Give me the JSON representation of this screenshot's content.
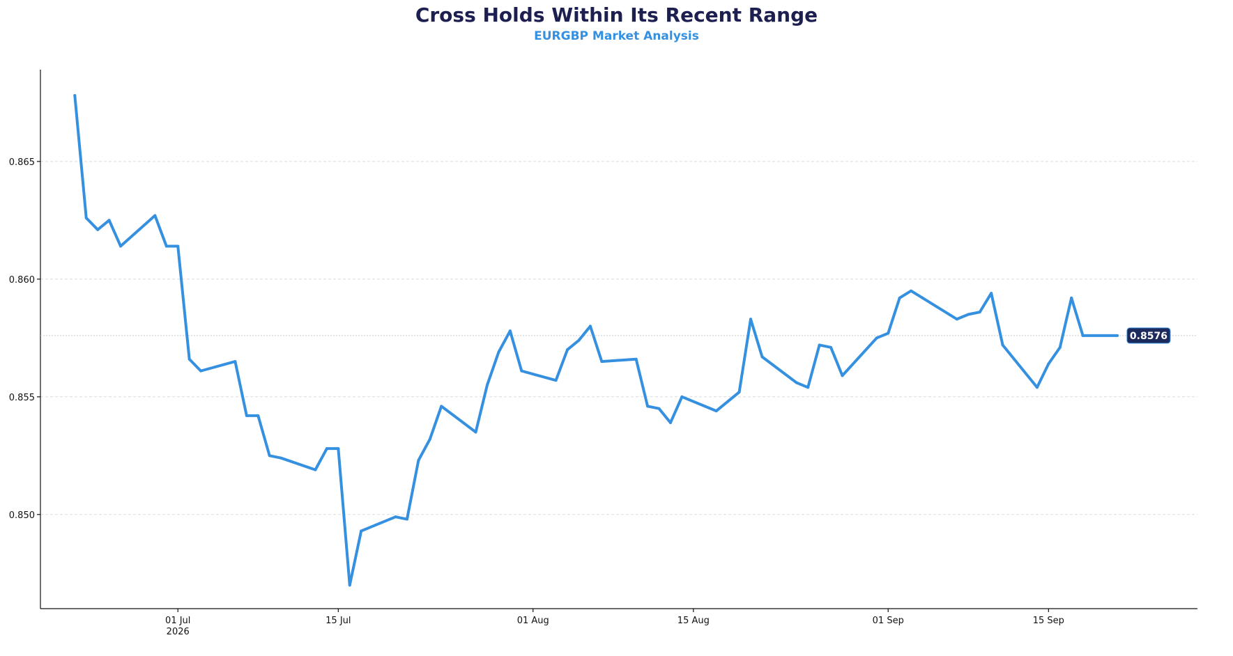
{
  "chart_data": {
    "type": "line",
    "title": "Cross Holds Within Its Recent Range",
    "subtitle": "EURGBP Market Analysis",
    "xlabel": "",
    "ylabel": "",
    "ylim": [
      0.846,
      0.8689
    ],
    "xlim": [
      "2026-06-19",
      "2026-09-28"
    ],
    "yticks": [
      "0.850",
      "0.855",
      "0.860",
      "0.865"
    ],
    "xticks": [
      {
        "date": "2026-07-01",
        "label": "01 Jul",
        "sublabel": "2026"
      },
      {
        "date": "2026-07-15",
        "label": "15 Jul",
        "sublabel": ""
      },
      {
        "date": "2026-08-01",
        "label": "01 Aug",
        "sublabel": ""
      },
      {
        "date": "2026-08-15",
        "label": "15 Aug",
        "sublabel": ""
      },
      {
        "date": "2026-09-01",
        "label": "01 Sep",
        "sublabel": ""
      },
      {
        "date": "2026-09-15",
        "label": "15 Sep",
        "sublabel": ""
      }
    ],
    "grid": "horizontal dashed",
    "last_value_label": "0.8576",
    "series": [
      {
        "x": [
          "2026-06-22",
          "2026-06-23",
          "2026-06-24",
          "2026-06-25",
          "2026-06-26",
          "2026-06-29",
          "2026-06-30",
          "2026-07-01",
          "2026-07-02",
          "2026-07-03",
          "2026-07-06",
          "2026-07-07",
          "2026-07-08",
          "2026-07-09",
          "2026-07-10",
          "2026-07-13",
          "2026-07-14",
          "2026-07-15",
          "2026-07-16",
          "2026-07-17",
          "2026-07-20",
          "2026-07-21",
          "2026-07-22",
          "2026-07-23",
          "2026-07-24",
          "2026-07-27",
          "2026-07-28",
          "2026-07-29",
          "2026-07-30",
          "2026-07-31",
          "2026-08-03",
          "2026-08-04",
          "2026-08-05",
          "2026-08-06",
          "2026-08-07",
          "2026-08-10",
          "2026-08-11",
          "2026-08-12",
          "2026-08-13",
          "2026-08-14",
          "2026-08-17",
          "2026-08-18",
          "2026-08-19",
          "2026-08-20",
          "2026-08-21",
          "2026-08-24",
          "2026-08-25",
          "2026-08-26",
          "2026-08-27",
          "2026-08-28",
          "2026-08-31",
          "2026-09-01",
          "2026-09-02",
          "2026-09-03",
          "2026-09-04",
          "2026-09-07",
          "2026-09-08",
          "2026-09-09",
          "2026-09-10",
          "2026-09-11",
          "2026-09-14",
          "2026-09-15",
          "2026-09-16",
          "2026-09-17",
          "2026-09-18",
          "2026-09-21"
        ],
        "values": [
          0.8678,
          0.8626,
          0.8621,
          0.8625,
          0.8614,
          0.8627,
          0.8614,
          0.8614,
          0.8566,
          0.8561,
          0.8565,
          0.8542,
          0.8542,
          0.8525,
          0.8524,
          0.8519,
          0.8528,
          0.8528,
          0.847,
          0.8493,
          0.8499,
          0.8498,
          0.8523,
          0.8532,
          0.8546,
          0.8535,
          0.8555,
          0.8569,
          0.8578,
          0.8561,
          0.8557,
          0.857,
          0.8574,
          0.858,
          0.8565,
          0.8566,
          0.8546,
          0.8545,
          0.8539,
          0.855,
          0.8544,
          0.8548,
          0.8552,
          0.8583,
          0.8567,
          0.8556,
          0.8554,
          0.8572,
          0.8571,
          0.8559,
          0.8575,
          0.8577,
          0.8592,
          0.8595,
          0.8592,
          0.8583,
          0.8585,
          0.8586,
          0.8594,
          0.8572,
          0.8554,
          0.8564,
          0.8571,
          0.8592,
          0.8576,
          0.8576
        ]
      }
    ]
  },
  "colors": {
    "line": "#3590e0",
    "title": "#1c1f4f",
    "subtitle": "#3590e0",
    "badge": "#1c2a5c"
  }
}
